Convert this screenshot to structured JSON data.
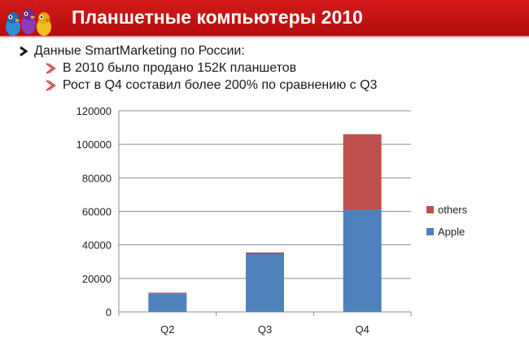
{
  "slide": {
    "title": "Планшетные компьютеры 2010",
    "bullets": {
      "main": "Данные SmartMarketing по России:",
      "sub1": "В 2010 было продано 152К планшетов",
      "sub2": "Рост в Q4 составил более 200% по сравнению с Q3"
    }
  },
  "colors": {
    "header": "#c8161d",
    "apple": "#4f81bd",
    "others": "#c0504d",
    "arrow": "#d04040"
  },
  "chart_data": {
    "type": "bar",
    "stacked": true,
    "categories": [
      "Q2",
      "Q3",
      "Q4"
    ],
    "series": [
      {
        "name": "Apple",
        "values": [
          11000,
          34500,
          61000
        ]
      },
      {
        "name": "others",
        "values": [
          500,
          1000,
          45000
        ]
      }
    ],
    "y_ticks": [
      "0",
      "20000",
      "40000",
      "60000",
      "80000",
      "100000",
      "120000"
    ],
    "ylim": [
      0,
      120000
    ],
    "grid": true,
    "legend": "right"
  }
}
